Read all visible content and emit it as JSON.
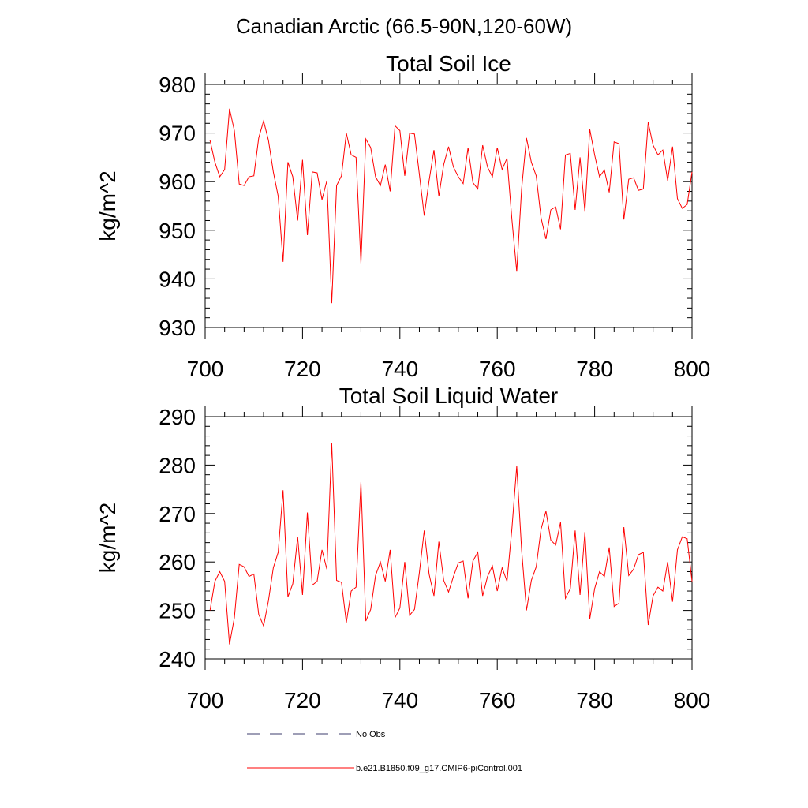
{
  "figure_title": "Canadian Arctic (66.5-90N,120-60W)",
  "chart_data": [
    {
      "type": "line",
      "title": "Total Soil Ice",
      "xlabel": "",
      "ylabel": "kg/m^2",
      "xlim": [
        700,
        800
      ],
      "ylim": [
        930,
        980
      ],
      "x_ticks": [
        "700",
        "720",
        "740",
        "760",
        "780",
        "800"
      ],
      "y_ticks": [
        "930",
        "940",
        "950",
        "960",
        "970",
        "980"
      ],
      "grid": false,
      "x": [
        701,
        702,
        703,
        704,
        705,
        706,
        707,
        708,
        709,
        710,
        711,
        712,
        713,
        714,
        715,
        716,
        717,
        718,
        719,
        720,
        721,
        722,
        723,
        724,
        725,
        726,
        727,
        728,
        729,
        730,
        731,
        732,
        733,
        734,
        735,
        736,
        737,
        738,
        739,
        740,
        741,
        742,
        743,
        744,
        745,
        746,
        747,
        748,
        749,
        750,
        751,
        752,
        753,
        754,
        755,
        756,
        757,
        758,
        759,
        760,
        761,
        762,
        763,
        764,
        765,
        766,
        767,
        768,
        769,
        770,
        771,
        772,
        773,
        774,
        775,
        776,
        777,
        778,
        779,
        780,
        781,
        782,
        783,
        784,
        785,
        786,
        787,
        788,
        789,
        790,
        791,
        792,
        793,
        794,
        795,
        796,
        797,
        798,
        799,
        800
      ],
      "series": [
        {
          "name": "b.e21.B1850.f09_g17.CMIP6-piControl.001",
          "color": "#ff0000",
          "values": [
            968.5,
            964.0,
            961.0,
            962.5,
            975.0,
            970.5,
            959.5,
            959.2,
            961.0,
            961.2,
            969.0,
            972.5,
            968.5,
            962.0,
            957.0,
            943.5,
            964.0,
            961.0,
            952.0,
            964.5,
            949.0,
            962.0,
            961.8,
            956.3,
            960.2,
            935.0,
            959.2,
            961.2,
            970.0,
            965.5,
            965.0,
            943.2,
            968.8,
            967.0,
            961.0,
            959.2,
            963.5,
            958.0,
            971.5,
            970.5,
            961.2,
            970.0,
            969.8,
            961.5,
            953.0,
            960.2,
            966.5,
            957.0,
            963.5,
            967.2,
            963.0,
            961.0,
            959.6,
            967.0,
            959.8,
            958.5,
            967.5,
            963.0,
            961.0,
            967.0,
            962.5,
            964.8,
            952.3,
            941.5,
            958.5,
            969.0,
            964.0,
            961.2,
            952.5,
            948.2,
            954.2,
            954.8,
            950.2,
            965.5,
            965.8,
            954.2,
            965.0,
            953.8,
            970.8,
            965.5,
            961.0,
            962.4,
            957.8,
            968.2,
            967.8,
            952.2,
            960.5,
            960.8,
            958.2,
            958.5,
            972.2,
            967.5,
            965.5,
            966.5,
            960.2,
            967.2,
            956.5,
            954.5,
            955.3,
            962.0
          ]
        }
      ]
    },
    {
      "type": "line",
      "title": "Total Soil Liquid Water",
      "xlabel": "",
      "ylabel": "kg/m^2",
      "xlim": [
        700,
        800
      ],
      "ylim": [
        240,
        290
      ],
      "x_ticks": [
        "700",
        "720",
        "740",
        "760",
        "780",
        "800"
      ],
      "y_ticks": [
        "240",
        "250",
        "260",
        "270",
        "280",
        "290"
      ],
      "grid": false,
      "x": [
        701,
        702,
        703,
        704,
        705,
        706,
        707,
        708,
        709,
        710,
        711,
        712,
        713,
        714,
        715,
        716,
        717,
        718,
        719,
        720,
        721,
        722,
        723,
        724,
        725,
        726,
        727,
        728,
        729,
        730,
        731,
        732,
        733,
        734,
        735,
        736,
        737,
        738,
        739,
        740,
        741,
        742,
        743,
        744,
        745,
        746,
        747,
        748,
        749,
        750,
        751,
        752,
        753,
        754,
        755,
        756,
        757,
        758,
        759,
        760,
        761,
        762,
        763,
        764,
        765,
        766,
        767,
        768,
        769,
        770,
        771,
        772,
        773,
        774,
        775,
        776,
        777,
        778,
        779,
        780,
        781,
        782,
        783,
        784,
        785,
        786,
        787,
        788,
        789,
        790,
        791,
        792,
        793,
        794,
        795,
        796,
        797,
        798,
        799,
        800
      ],
      "series": [
        {
          "name": "b.e21.B1850.f09_g17.CMIP6-piControl.001",
          "color": "#ff0000",
          "values": [
            250.0,
            256.0,
            258.0,
            256.0,
            243.0,
            248.5,
            259.5,
            259.0,
            257.0,
            257.5,
            249.2,
            246.8,
            252.0,
            258.8,
            262.0,
            274.8,
            252.8,
            255.5,
            265.2,
            253.2,
            270.2,
            255.2,
            256.0,
            262.5,
            258.5,
            284.5,
            256.2,
            255.8,
            247.5,
            254.0,
            254.8,
            276.5,
            247.8,
            250.2,
            257.2,
            260.0,
            256.0,
            262.5,
            248.5,
            250.5,
            260.0,
            249.0,
            250.2,
            257.8,
            266.5,
            257.5,
            253.0,
            264.2,
            256.2,
            253.8,
            257.0,
            259.8,
            260.2,
            252.5,
            260.2,
            262.0,
            253.0,
            257.0,
            259.2,
            254.0,
            258.8,
            256.0,
            266.8,
            279.8,
            262.5,
            250.0,
            256.2,
            259.0,
            266.8,
            270.5,
            264.5,
            263.5,
            268.2,
            252.5,
            254.5,
            266.5,
            253.2,
            266.2,
            248.2,
            254.5,
            258.0,
            257.0,
            263.0,
            250.8,
            251.5,
            267.2,
            257.2,
            258.5,
            261.5,
            262.0,
            247.0,
            253.0,
            254.8,
            254.0,
            260.0,
            251.8,
            262.5,
            265.2,
            264.8,
            256.0
          ]
        }
      ]
    }
  ],
  "legend": [
    {
      "label": "No Obs",
      "style": "dashed",
      "color": "#3c3c6e"
    },
    {
      "label": "b.e21.B1850.f09_g17.CMIP6-piControl.001",
      "style": "solid",
      "color": "#ff0000"
    }
  ]
}
